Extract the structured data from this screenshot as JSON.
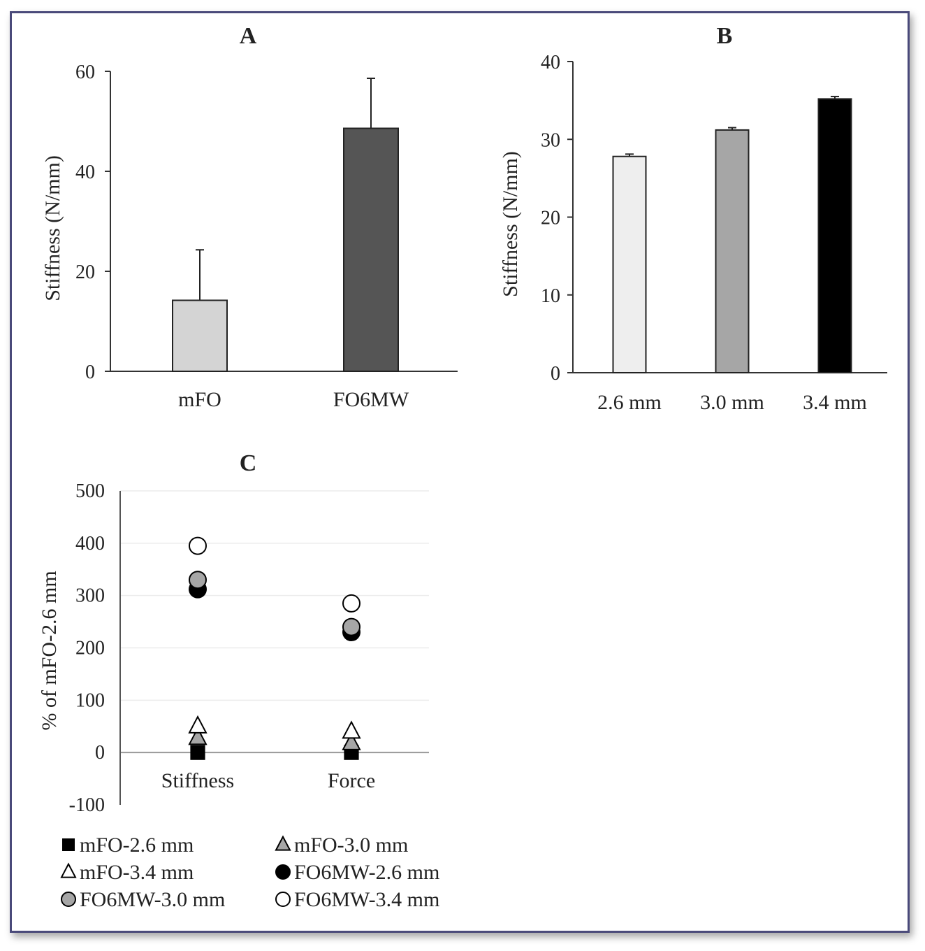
{
  "chart_data": [
    {
      "panel": "A",
      "type": "bar",
      "title": "A",
      "categories": [
        "mFO",
        "FO6MW"
      ],
      "values": [
        14.2,
        48.6
      ],
      "error": [
        10.1,
        10.0
      ],
      "colors": [
        "#d4d4d4",
        "#555555"
      ],
      "ylabel": "Stiffness (N/mm)",
      "ylim": [
        0,
        60
      ],
      "yticks": [
        "0",
        "20",
        "40",
        "60"
      ],
      "grid": false
    },
    {
      "panel": "B",
      "type": "bar",
      "title": "B",
      "categories": [
        "2.6 mm",
        "3.0 mm",
        "3.4 mm"
      ],
      "values": [
        27.8,
        31.2,
        35.2
      ],
      "error": [
        0.3,
        0.3,
        0.3
      ],
      "colors": [
        "#eeeeee",
        "#a6a6a6",
        "#000000"
      ],
      "ylabel": "Stiffness (N/mm)",
      "ylim": [
        0,
        40
      ],
      "yticks": [
        "0",
        "10",
        "20",
        "30",
        "40"
      ],
      "grid": false
    },
    {
      "panel": "C",
      "type": "scatter",
      "title": "C",
      "categories": [
        "Stiffness",
        "Force"
      ],
      "ylabel": "% of mFO-2.6 mm",
      "ylim": [
        -100,
        500
      ],
      "yticks": [
        "-100",
        "0",
        "100",
        "200",
        "300",
        "400",
        "500"
      ],
      "grid": true,
      "legend_position": "bottom",
      "series": [
        {
          "name": "mFO-2.6 mm",
          "values": [
            0,
            0
          ],
          "marker": "square",
          "fill": "#000000",
          "stroke": "#000000"
        },
        {
          "name": "mFO-3.0 mm",
          "values": [
            28,
            18
          ],
          "marker": "triangle",
          "fill": "#a6a6a6",
          "stroke": "#000000"
        },
        {
          "name": "mFO-3.4 mm",
          "values": [
            50,
            40
          ],
          "marker": "triangle",
          "fill": "#ffffff",
          "stroke": "#000000"
        },
        {
          "name": "FO6MW-2.6 mm",
          "values": [
            312,
            230
          ],
          "marker": "circle",
          "fill": "#000000",
          "stroke": "#000000"
        },
        {
          "name": "FO6MW-3.0 mm",
          "values": [
            330,
            240
          ],
          "marker": "circle",
          "fill": "#a6a6a6",
          "stroke": "#000000"
        },
        {
          "name": "FO6MW-3.4 mm",
          "values": [
            395,
            285
          ],
          "marker": "circle",
          "fill": "#ffffff",
          "stroke": "#000000"
        }
      ]
    }
  ]
}
